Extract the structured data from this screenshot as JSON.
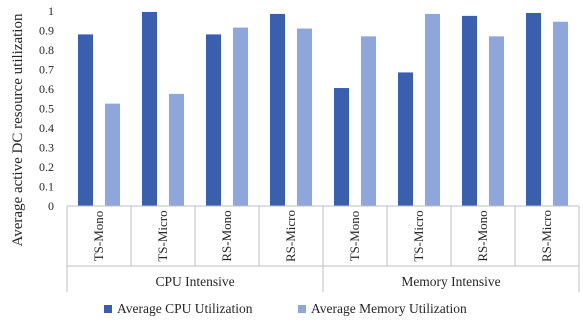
{
  "chart_data": {
    "type": "bar",
    "title": "",
    "ylabel": "Average active DC resource utilization",
    "xlabel": "",
    "ylim": [
      0,
      1
    ],
    "yticks": [
      "0",
      "0.1",
      "0.2",
      "0.3",
      "0.4",
      "0.5",
      "0.6",
      "0.7",
      "0.8",
      "0.9",
      "1"
    ],
    "categories": [
      "TS-Mono",
      "TS-Micro",
      "RS-Mono",
      "RS-Micro",
      "TS-Mono",
      "TS-Micro",
      "RS-Mono",
      "RS-Micro"
    ],
    "groups": [
      {
        "label": "CPU Intensive",
        "categories": 4
      },
      {
        "label": "Memory Intensive",
        "categories": 4
      }
    ],
    "series": [
      {
        "name": "Average CPU Utilization",
        "color": "#3a5fad",
        "values": [
          0.88,
          0.995,
          0.88,
          0.985,
          0.605,
          0.685,
          0.975,
          0.99
        ]
      },
      {
        "name": "Average  Memory Utilization",
        "color": "#8fa6db",
        "values": [
          0.525,
          0.575,
          0.915,
          0.91,
          0.87,
          0.985,
          0.87,
          0.945
        ]
      }
    ],
    "grid": false,
    "legend_position": "bottom"
  }
}
